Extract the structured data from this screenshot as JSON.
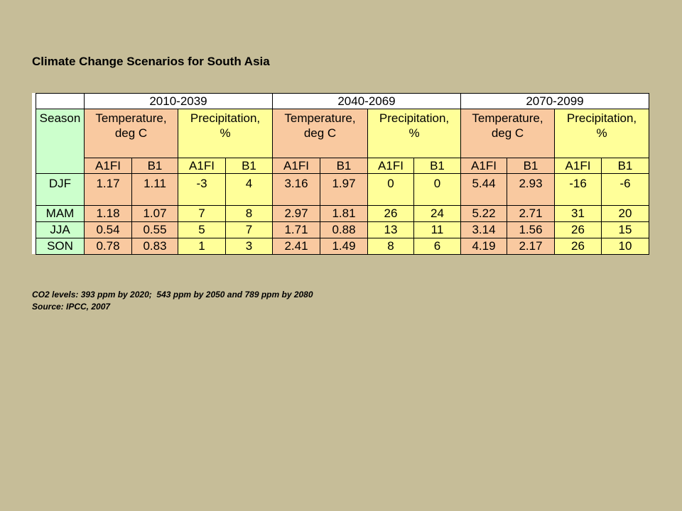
{
  "title": "Climate Change Scenarios for South Asia",
  "table": {
    "header": {
      "season": "Season",
      "periods": [
        {
          "label": "2010-2039",
          "variables": [
            {
              "label": "Temperature, deg C",
              "scenarios": [
                "A1FI",
                "B1"
              ]
            },
            {
              "label": "Precipitation, %",
              "scenarios": [
                "A1FI",
                "B1"
              ]
            }
          ]
        },
        {
          "label": "2040-2069",
          "variables": [
            {
              "label": "Temperature, deg C",
              "scenarios": [
                "A1FI",
                "B1"
              ]
            },
            {
              "label": "Precipitation, %",
              "scenarios": [
                "A1FI",
                "B1"
              ]
            }
          ]
        },
        {
          "label": "2070-2099",
          "variables": [
            {
              "label": "Temperature, deg C",
              "scenarios": [
                "A1FI",
                "B1"
              ]
            },
            {
              "label": "Precipitation, %",
              "scenarios": [
                "A1FI",
                "B1"
              ]
            }
          ]
        }
      ]
    },
    "rows": [
      {
        "season": "DJF",
        "values": [
          "1.17",
          "1.11",
          "-3",
          "4",
          "3.16",
          "1.97",
          "0",
          "0",
          "5.44",
          "2.93",
          "-16",
          "-6"
        ]
      },
      {
        "season": "MAM",
        "values": [
          "1.18",
          "1.07",
          "7",
          "8",
          "2.97",
          "1.81",
          "26",
          "24",
          "5.22",
          "2.71",
          "31",
          "20"
        ]
      },
      {
        "season": "JJA",
        "values": [
          "0.54",
          "0.55",
          "5",
          "7",
          "1.71",
          "0.88",
          "13",
          "11",
          "3.14",
          "1.56",
          "26",
          "15"
        ]
      },
      {
        "season": "SON",
        "values": [
          "0.78",
          "0.83",
          "1",
          "3",
          "2.41",
          "1.49",
          "8",
          "6",
          "4.19",
          "2.17",
          "26",
          "10"
        ]
      }
    ]
  },
  "notes": [
    "CO2 levels: 393 ppm by 2020;  543 ppm by 2050 and 789 ppm by 2080",
    "Source: IPCC, 2007"
  ]
}
